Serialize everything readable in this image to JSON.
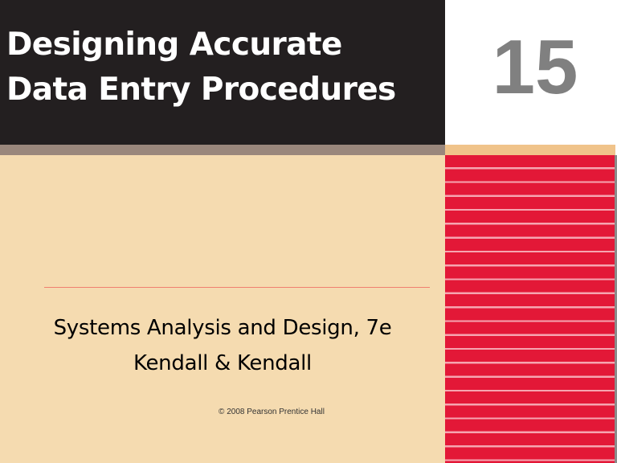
{
  "slide": {
    "title_line1": "Designing Accurate",
    "title_line2": "Data Entry Procedures",
    "chapter_number": "15",
    "subtitle_line1": "Systems Analysis and Design, 7e",
    "subtitle_line2": "Kendall & Kendall",
    "copyright": "© 2008 Pearson Prentice Hall"
  },
  "colors": {
    "title_background": "#231f20",
    "title_band": "#9a877c",
    "page_background": "#f5dbb0",
    "number_band": "#f0c38a",
    "stripe_red": "#e31837",
    "stripe_line": "#f6a5b0",
    "chapter_number": "#808080",
    "divider": "#f08070"
  }
}
